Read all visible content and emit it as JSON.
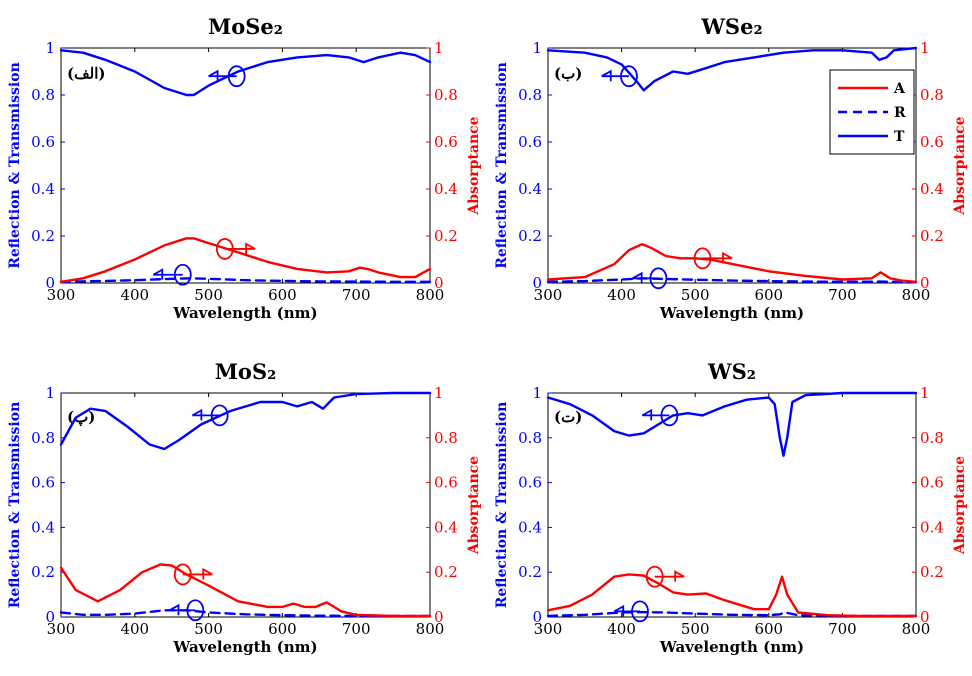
{
  "colors": {
    "absorptance": "#ff0000",
    "reflection": "#0000ff",
    "transmission": "#0000ff",
    "axis": "#000000"
  },
  "legend": {
    "items": [
      "A",
      "R",
      "T"
    ]
  },
  "chart_data": [
    {
      "type": "line",
      "title": "MoSe₂",
      "panel_label": "(الف)",
      "xlabel": "Wavelength (nm)",
      "ylabel": "Reflection & Transmission",
      "ylabel_right": "Absorptance",
      "xlim": [
        300,
        800
      ],
      "ylim": [
        0,
        1
      ],
      "xticks": [
        "300",
        "400",
        "500",
        "600",
        "700",
        "800"
      ],
      "yticks": [
        "0",
        "0.2",
        "0.4",
        "0.6",
        "0.8",
        "1"
      ],
      "series": [
        {
          "name": "T",
          "x": [
            300,
            330,
            360,
            400,
            440,
            470,
            480,
            500,
            540,
            580,
            620,
            660,
            690,
            710,
            730,
            760,
            780,
            800
          ],
          "values": [
            0.99,
            0.98,
            0.95,
            0.9,
            0.83,
            0.8,
            0.8,
            0.84,
            0.9,
            0.94,
            0.96,
            0.97,
            0.96,
            0.94,
            0.96,
            0.98,
            0.97,
            0.94
          ]
        },
        {
          "name": "R",
          "x": [
            300,
            350,
            400,
            450,
            475,
            500,
            550,
            600,
            650,
            700,
            750,
            800
          ],
          "values": [
            0.005,
            0.008,
            0.012,
            0.018,
            0.02,
            0.018,
            0.012,
            0.009,
            0.007,
            0.006,
            0.005,
            0.005
          ]
        },
        {
          "name": "A",
          "x": [
            300,
            330,
            360,
            400,
            440,
            470,
            480,
            500,
            540,
            580,
            620,
            660,
            690,
            705,
            715,
            730,
            760,
            780,
            800
          ],
          "values": [
            0.005,
            0.02,
            0.05,
            0.1,
            0.16,
            0.19,
            0.19,
            0.17,
            0.13,
            0.09,
            0.06,
            0.045,
            0.05,
            0.065,
            0.06,
            0.045,
            0.025,
            0.025,
            0.06
          ]
        }
      ],
      "annotations": [
        {
          "series": "T",
          "ellipse_at": [
            538,
            0.88
          ],
          "arrow_to": [
            500,
            0.88
          ]
        },
        {
          "series": "R",
          "ellipse_at": [
            465,
            0.035
          ],
          "arrow_to": [
            425,
            0.035
          ]
        },
        {
          "series": "A",
          "ellipse_at": [
            522,
            0.145
          ],
          "arrow_to": [
            563,
            0.145
          ]
        }
      ]
    },
    {
      "type": "line",
      "title": "WSe₂",
      "panel_label": "(ب)",
      "xlabel": "Wavelength (nm)",
      "ylabel": "Reflection & Transmission",
      "ylabel_right": "Absorptance",
      "xlim": [
        300,
        800
      ],
      "ylim": [
        0,
        1
      ],
      "xticks": [
        "300",
        "400",
        "500",
        "600",
        "700",
        "800"
      ],
      "yticks": [
        "0",
        "0.2",
        "0.4",
        "0.6",
        "0.8",
        "1"
      ],
      "show_legend": true,
      "series": [
        {
          "name": "T",
          "x": [
            300,
            350,
            380,
            400,
            420,
            430,
            445,
            470,
            490,
            510,
            540,
            580,
            620,
            660,
            700,
            740,
            750,
            760,
            770,
            800
          ],
          "values": [
            0.99,
            0.98,
            0.96,
            0.93,
            0.86,
            0.82,
            0.86,
            0.9,
            0.89,
            0.91,
            0.94,
            0.96,
            0.98,
            0.99,
            0.99,
            0.98,
            0.95,
            0.96,
            0.99,
            1.0
          ]
        },
        {
          "name": "R",
          "x": [
            300,
            350,
            400,
            430,
            450,
            500,
            550,
            600,
            650,
            700,
            750,
            800
          ],
          "values": [
            0.005,
            0.008,
            0.015,
            0.02,
            0.018,
            0.014,
            0.01,
            0.008,
            0.006,
            0.005,
            0.006,
            0.004
          ]
        },
        {
          "name": "A",
          "x": [
            300,
            350,
            390,
            410,
            428,
            440,
            460,
            480,
            500,
            520,
            560,
            600,
            650,
            700,
            740,
            752,
            765,
            780,
            800
          ],
          "values": [
            0.015,
            0.025,
            0.08,
            0.14,
            0.165,
            0.15,
            0.115,
            0.105,
            0.105,
            0.1,
            0.075,
            0.05,
            0.03,
            0.015,
            0.02,
            0.045,
            0.02,
            0.01,
            0.005
          ]
        }
      ],
      "annotations": [
        {
          "series": "T",
          "ellipse_at": [
            410,
            0.88
          ],
          "arrow_to": [
            373,
            0.88
          ]
        },
        {
          "series": "R",
          "ellipse_at": [
            450,
            0.02
          ],
          "arrow_to": [
            415,
            0.02
          ]
        },
        {
          "series": "A",
          "ellipse_at": [
            510,
            0.105
          ],
          "arrow_to": [
            550,
            0.105
          ]
        }
      ]
    },
    {
      "type": "line",
      "title": "MoS₂",
      "panel_label": "(پ)",
      "xlabel": "Wavelength (nm)",
      "ylabel": "Reflection & Transmission",
      "ylabel_right": "Absorptance",
      "xlim": [
        300,
        800
      ],
      "ylim": [
        0,
        1
      ],
      "xticks": [
        "300",
        "400",
        "500",
        "600",
        "700",
        "800"
      ],
      "yticks": [
        "0",
        "0.2",
        "0.4",
        "0.6",
        "0.8",
        "1"
      ],
      "series": [
        {
          "name": "T",
          "x": [
            300,
            320,
            340,
            360,
            390,
            420,
            440,
            460,
            490,
            530,
            570,
            600,
            620,
            640,
            655,
            670,
            700,
            750,
            800
          ],
          "values": [
            0.77,
            0.89,
            0.93,
            0.92,
            0.85,
            0.77,
            0.75,
            0.79,
            0.86,
            0.92,
            0.96,
            0.96,
            0.94,
            0.96,
            0.93,
            0.98,
            0.995,
            1.0,
            1.0
          ]
        },
        {
          "name": "R",
          "x": [
            300,
            330,
            360,
            400,
            440,
            470,
            500,
            550,
            600,
            650,
            700,
            750,
            800
          ],
          "values": [
            0.02,
            0.01,
            0.01,
            0.015,
            0.03,
            0.03,
            0.02,
            0.012,
            0.008,
            0.006,
            0.005,
            0.005,
            0.005
          ]
        },
        {
          "name": "A",
          "x": [
            300,
            320,
            350,
            380,
            410,
            435,
            450,
            470,
            500,
            540,
            580,
            600,
            615,
            630,
            645,
            660,
            680,
            700,
            750,
            800
          ],
          "values": [
            0.22,
            0.12,
            0.07,
            0.12,
            0.2,
            0.235,
            0.23,
            0.19,
            0.14,
            0.07,
            0.045,
            0.045,
            0.06,
            0.045,
            0.045,
            0.065,
            0.025,
            0.01,
            0.005,
            0.005
          ]
        }
      ],
      "annotations": [
        {
          "series": "T",
          "ellipse_at": [
            515,
            0.9
          ],
          "arrow_to": [
            478,
            0.9
          ]
        },
        {
          "series": "R",
          "ellipse_at": [
            482,
            0.03
          ],
          "arrow_to": [
            447,
            0.03
          ]
        },
        {
          "series": "A",
          "ellipse_at": [
            465,
            0.19
          ],
          "arrow_to": [
            505,
            0.19
          ]
        }
      ]
    },
    {
      "type": "line",
      "title": "WS₂",
      "panel_label": "(ت)",
      "xlabel": "Wavelength (nm)",
      "ylabel": "Reflection & Transmission",
      "ylabel_right": "Absorptance",
      "xlim": [
        300,
        800
      ],
      "ylim": [
        0,
        1
      ],
      "xticks": [
        "300",
        "400",
        "500",
        "600",
        "700",
        "800"
      ],
      "yticks": [
        "0",
        "0.2",
        "0.4",
        "0.6",
        "0.8",
        "1"
      ],
      "series": [
        {
          "name": "T",
          "x": [
            300,
            330,
            360,
            390,
            410,
            430,
            450,
            470,
            490,
            510,
            540,
            570,
            600,
            608,
            615,
            620,
            625,
            632,
            650,
            700,
            750,
            800
          ],
          "values": [
            0.98,
            0.95,
            0.9,
            0.83,
            0.81,
            0.82,
            0.86,
            0.9,
            0.91,
            0.9,
            0.94,
            0.97,
            0.98,
            0.95,
            0.8,
            0.72,
            0.8,
            0.96,
            0.99,
            1.0,
            1.0,
            1.0
          ]
        },
        {
          "name": "R",
          "x": [
            300,
            350,
            400,
            430,
            460,
            500,
            550,
            600,
            615,
            622,
            640,
            700,
            750,
            800
          ],
          "values": [
            0.005,
            0.01,
            0.02,
            0.022,
            0.02,
            0.015,
            0.01,
            0.008,
            0.012,
            0.02,
            0.008,
            0.005,
            0.005,
            0.005
          ]
        },
        {
          "name": "A",
          "x": [
            300,
            330,
            360,
            390,
            410,
            430,
            450,
            470,
            490,
            515,
            540,
            580,
            600,
            610,
            618,
            625,
            640,
            680,
            720,
            800
          ],
          "values": [
            0.03,
            0.05,
            0.1,
            0.18,
            0.19,
            0.185,
            0.15,
            0.11,
            0.1,
            0.105,
            0.075,
            0.035,
            0.035,
            0.1,
            0.18,
            0.1,
            0.02,
            0.008,
            0.005,
            0.005
          ]
        }
      ],
      "annotations": [
        {
          "series": "T",
          "ellipse_at": [
            465,
            0.9
          ],
          "arrow_to": [
            428,
            0.9
          ]
        },
        {
          "series": "R",
          "ellipse_at": [
            425,
            0.025
          ],
          "arrow_to": [
            390,
            0.025
          ]
        },
        {
          "series": "A",
          "ellipse_at": [
            445,
            0.18
          ],
          "arrow_to": [
            485,
            0.18
          ]
        }
      ]
    }
  ]
}
